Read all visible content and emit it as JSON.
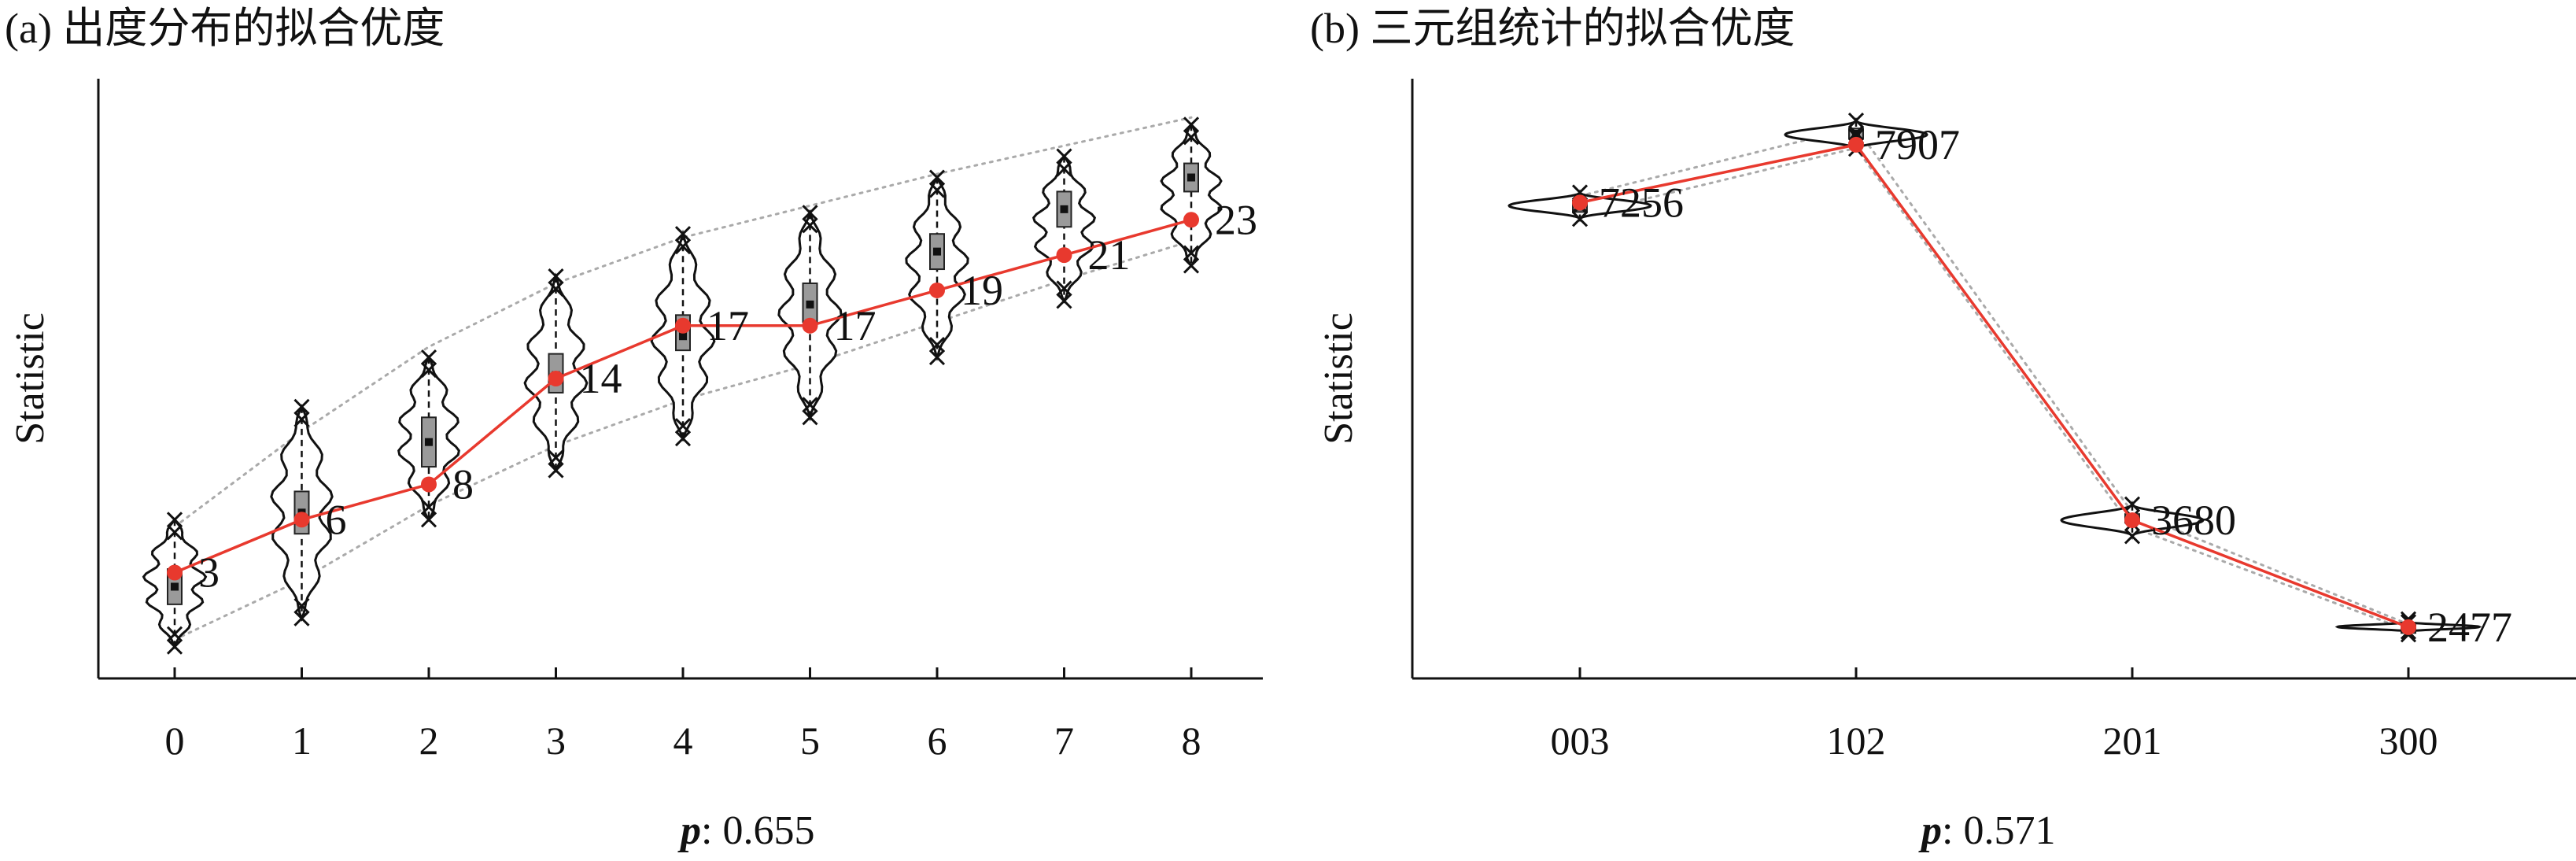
{
  "chart_data": [
    {
      "type": "violin",
      "title": "(a) 出度分布的拟合优度",
      "xlabel": "",
      "ylabel": "Statistic",
      "p_label": "p",
      "p_value": ": 0.655",
      "categories": [
        "0",
        "1",
        "2",
        "3",
        "4",
        "5",
        "6",
        "7",
        "8"
      ],
      "observed": [
        3,
        6,
        8,
        14,
        17,
        17,
        19,
        21,
        23
      ],
      "observed_labels": [
        "3",
        "6",
        "8",
        "14",
        "17",
        "17",
        "19",
        "21",
        "23"
      ],
      "box_median": [
        2.2,
        6.4,
        10.4,
        14.2,
        16.4,
        18.2,
        21.2,
        23.6,
        25.4
      ],
      "box_q1": [
        1.2,
        5.2,
        9.0,
        13.2,
        15.6,
        17.2,
        20.2,
        22.6,
        24.6
      ],
      "box_q3": [
        3.2,
        7.6,
        11.8,
        15.4,
        17.6,
        19.4,
        22.2,
        24.6,
        26.2
      ],
      "dotted_upper": [
        5.6,
        11.0,
        15.8,
        19.4,
        22.0,
        23.8,
        25.6,
        27.2,
        28.8
      ],
      "dotted_lower": [
        -0.8,
        2.6,
        6.8,
        10.2,
        12.8,
        14.8,
        17.2,
        19.6,
        21.8
      ],
      "cross_markers_upper": [
        6.0,
        12.4,
        15.2,
        19.8,
        22.2,
        23.4,
        25.4,
        26.6,
        28.4
      ],
      "cross_markers_lower": [
        -1.2,
        0.4,
        6.0,
        8.8,
        10.6,
        11.8,
        15.2,
        18.4,
        20.4
      ],
      "ylim": [
        -3,
        31
      ],
      "grid": false,
      "colors": {
        "observed": "#e8392e",
        "dotted": "#aaaaaa",
        "violin": "#111111",
        "box": "#9a9a9a"
      }
    },
    {
      "type": "violin",
      "title": "(b) 三元组统计的拟合优度",
      "xlabel": "",
      "ylabel": "Statistic",
      "p_label": "p",
      "p_value": ": 0.571",
      "categories": [
        "003",
        "102",
        "201",
        "300"
      ],
      "observed": [
        7256,
        7907,
        3680,
        2477
      ],
      "observed_labels": [
        "7256",
        "7907",
        "3680",
        "2477"
      ],
      "box_median": [
        7210,
        8030,
        3700,
        2480
      ],
      "box_q1": [
        7150,
        7980,
        3660,
        2465
      ],
      "box_q3": [
        7280,
        8090,
        3750,
        2500
      ],
      "dotted_upper": [
        7330,
        8100,
        3770,
        2510
      ],
      "dotted_lower": [
        7120,
        7870,
        3600,
        2440
      ],
      "cross_markers_upper": [
        7370,
        8180,
        3860,
        2535
      ],
      "cross_markers_lower": [
        7070,
        7860,
        3500,
        2425
      ],
      "ylim": [
        1900,
        8650
      ],
      "grid": false,
      "colors": {
        "observed": "#e8392e",
        "dotted": "#aaaaaa",
        "violin": "#111111",
        "box": "#9a9a9a"
      }
    }
  ]
}
